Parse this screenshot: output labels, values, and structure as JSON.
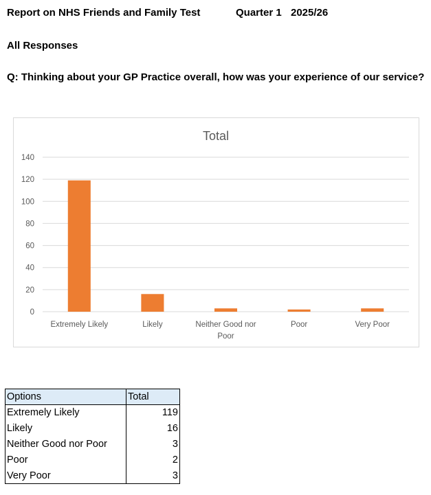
{
  "header": {
    "title": "Report on NHS Friends and Family Test",
    "quarter": "Quarter 1",
    "year": "2025/26",
    "subtitle": "All Responses",
    "question": "Q: Thinking about your GP Practice overall, how was your experience of our service?"
  },
  "colors": {
    "bar": "#ed7d31",
    "grid": "#d9d9d9",
    "table_header": "#ddebf7"
  },
  "chart_data": {
    "type": "bar",
    "title": "Total",
    "categories": [
      "Extremely Likely",
      "Likely",
      "Neither Good nor Poor",
      "Poor",
      "Very Poor"
    ],
    "series": [
      {
        "values": [
          119,
          16,
          3,
          2,
          3
        ]
      }
    ],
    "ylim": [
      0,
      140
    ],
    "yticks": [
      0,
      20,
      40,
      60,
      80,
      100,
      120,
      140
    ],
    "grid": true,
    "legend": "none",
    "xlabel": "",
    "ylabel": ""
  },
  "table": {
    "headers": [
      "Options",
      "Total"
    ],
    "rows": [
      {
        "option": "Extremely Likely",
        "total": "119"
      },
      {
        "option": "Likely",
        "total": "16"
      },
      {
        "option": "Neither Good nor Poor",
        "total": "3"
      },
      {
        "option": "Poor",
        "total": "2"
      },
      {
        "option": "Very Poor",
        "total": "3"
      }
    ]
  }
}
